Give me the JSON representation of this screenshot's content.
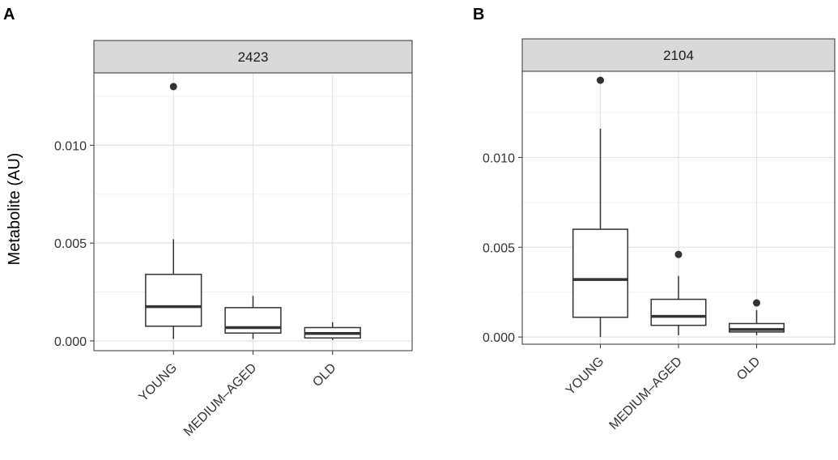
{
  "chart_data": [
    {
      "type": "boxplot",
      "panel_label": "A",
      "facet_label": "2423",
      "ylabel": "Metabolite (AU)",
      "xlabel": "",
      "categories": [
        "YOUNG",
        "MEDIUM–AGED",
        "OLD"
      ],
      "ylim": [
        -0.0005,
        0.0137
      ],
      "yticks": [
        0.0,
        0.005,
        0.01
      ],
      "ytick_labels": [
        "0.000",
        "0.005",
        "0.010"
      ],
      "grid": true,
      "boxes": [
        {
          "category": "YOUNG",
          "whisker_low": 0.0001,
          "q1": 0.00075,
          "median": 0.00175,
          "q3": 0.0034,
          "whisker_high": 0.0052,
          "outliers": [
            0.013
          ]
        },
        {
          "category": "MEDIUM–AGED",
          "whisker_low": 0.0001,
          "q1": 0.0004,
          "median": 0.00068,
          "q3": 0.0017,
          "whisker_high": 0.0023,
          "outliers": []
        },
        {
          "category": "OLD",
          "whisker_low": 5e-05,
          "q1": 0.00015,
          "median": 0.00038,
          "q3": 0.00068,
          "whisker_high": 0.00095,
          "outliers": []
        }
      ]
    },
    {
      "type": "boxplot",
      "panel_label": "B",
      "facet_label": "2104",
      "ylabel": "",
      "xlabel": "",
      "categories": [
        "YOUNG",
        "MEDIUM–AGED",
        "OLD"
      ],
      "ylim": [
        -0.0004,
        0.0148
      ],
      "yticks": [
        0.0,
        0.005,
        0.01
      ],
      "ytick_labels": [
        "0.000",
        "0.005",
        "0.010"
      ],
      "grid": true,
      "boxes": [
        {
          "category": "YOUNG",
          "whisker_low": 0.0,
          "q1": 0.0011,
          "median": 0.0032,
          "q3": 0.006,
          "whisker_high": 0.0116,
          "outliers": [
            0.0143
          ]
        },
        {
          "category": "MEDIUM–AGED",
          "whisker_low": 0.0001,
          "q1": 0.00065,
          "median": 0.00115,
          "q3": 0.0021,
          "whisker_high": 0.0034,
          "outliers": [
            0.0046
          ]
        },
        {
          "category": "OLD",
          "whisker_low": 0.0001,
          "q1": 0.00028,
          "median": 0.00042,
          "q3": 0.00075,
          "whisker_high": 0.0015,
          "outliers": [
            0.0019
          ]
        }
      ]
    }
  ]
}
